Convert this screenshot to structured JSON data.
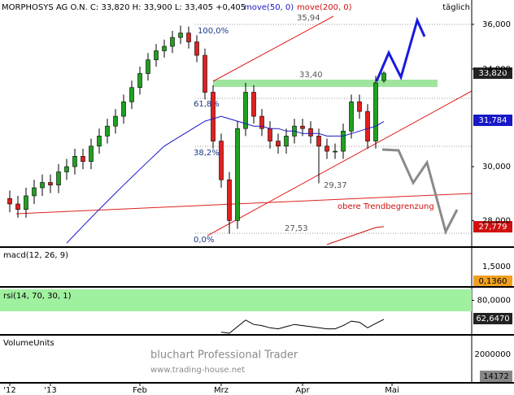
{
  "header": {
    "title": "MORPHOSYS AG O.N. C: 33,820 H: 33,900 L: 33,405 +0,405",
    "period": "täglich"
  },
  "chart_data": {
    "type": "candlestick",
    "categories": [
      "'12",
      null,
      null,
      null,
      null,
      "'13",
      null,
      null,
      null,
      null,
      null,
      null,
      null,
      null,
      null,
      null,
      "Feb",
      null,
      null,
      null,
      null,
      null,
      null,
      null,
      null,
      null,
      "Mrz",
      null,
      null,
      null,
      null,
      null,
      null,
      null,
      null,
      null,
      "Apr",
      null,
      null,
      null,
      null,
      null,
      null,
      null,
      null,
      null,
      null,
      "Mai"
    ],
    "open": [
      28.8,
      28.6,
      28.4,
      28.9,
      29.2,
      29.4,
      29.3,
      29.8,
      30.0,
      30.4,
      30.2,
      30.8,
      31.2,
      31.6,
      32.0,
      32.6,
      33.2,
      33.8,
      34.4,
      34.8,
      35.0,
      35.4,
      35.6,
      35.2,
      34.6,
      33.0,
      31.0,
      29.5,
      28.0,
      31.5,
      33.0,
      32.0,
      31.5,
      31.0,
      30.8,
      31.2,
      31.6,
      31.5,
      31.2,
      30.8,
      30.6,
      30.6,
      31.4,
      32.6,
      32.2,
      31.0,
      33.5,
      null
    ],
    "high": [
      29.1,
      28.9,
      29.2,
      29.5,
      29.7,
      29.7,
      30.1,
      30.3,
      30.7,
      30.7,
      31.1,
      31.5,
      31.9,
      32.3,
      32.9,
      33.5,
      34.1,
      34.7,
      35.1,
      35.3,
      35.7,
      35.94,
      35.9,
      35.5,
      34.9,
      33.3,
      31.3,
      29.8,
      31.8,
      33.4,
      33.3,
      32.3,
      31.8,
      31.3,
      31.5,
      31.9,
      31.9,
      31.8,
      31.5,
      31.1,
      30.9,
      31.7,
      32.9,
      32.9,
      32.5,
      33.7,
      33.9,
      null
    ],
    "low": [
      28.3,
      28.1,
      28.1,
      28.6,
      28.9,
      29.0,
      29.0,
      29.5,
      29.7,
      29.9,
      29.9,
      30.5,
      30.9,
      31.3,
      31.7,
      32.3,
      32.9,
      33.5,
      34.1,
      34.5,
      34.7,
      35.1,
      34.9,
      34.3,
      32.7,
      30.7,
      29.2,
      27.53,
      27.7,
      31.2,
      31.7,
      31.2,
      30.7,
      30.5,
      30.5,
      30.9,
      31.2,
      30.9,
      29.37,
      30.3,
      30.3,
      30.3,
      31.1,
      31.9,
      30.7,
      30.7,
      33.405,
      null
    ],
    "close": [
      28.6,
      28.4,
      28.9,
      29.2,
      29.4,
      29.3,
      29.8,
      30.0,
      30.4,
      30.2,
      30.8,
      31.2,
      31.6,
      32.0,
      32.6,
      33.2,
      33.8,
      34.4,
      34.8,
      35.0,
      35.4,
      35.6,
      35.2,
      34.6,
      33.0,
      31.0,
      29.5,
      28.0,
      31.5,
      33.0,
      32.0,
      31.5,
      31.0,
      30.8,
      31.2,
      31.6,
      31.5,
      31.2,
      30.8,
      30.6,
      30.6,
      31.4,
      32.6,
      32.2,
      31.0,
      33.4,
      33.82,
      null
    ],
    "series": [
      {
        "name": "move(50, 0)",
        "color": "#1818c8",
        "values": [
          null,
          null,
          null,
          null,
          null,
          null,
          null,
          27.2,
          27.5,
          27.8,
          28.1,
          28.4,
          28.7,
          29.0,
          29.3,
          29.6,
          29.9,
          30.2,
          30.5,
          30.8,
          31.0,
          31.2,
          31.4,
          31.6,
          31.8,
          31.9,
          32.0,
          31.9,
          31.8,
          31.7,
          31.6,
          31.6,
          31.5,
          31.5,
          31.4,
          31.4,
          31.3,
          31.3,
          31.3,
          31.2,
          31.2,
          31.2,
          31.3,
          31.4,
          31.5,
          31.6,
          31.784,
          null
        ]
      },
      {
        "name": "move(200, 0)",
        "color": "#d01010",
        "values": [
          null,
          null,
          null,
          null,
          null,
          null,
          null,
          null,
          null,
          null,
          null,
          null,
          null,
          null,
          null,
          null,
          null,
          null,
          null,
          null,
          null,
          null,
          null,
          null,
          null,
          null,
          null,
          null,
          null,
          null,
          null,
          null,
          null,
          null,
          null,
          null,
          null,
          null,
          null,
          27.15,
          27.25,
          27.35,
          27.45,
          27.55,
          27.65,
          27.75,
          27.779,
          null
        ]
      }
    ],
    "log_scale": true,
    "ylim": [
      27.12,
      37.14
    ],
    "yticks": [
      {
        "value": 36,
        "label": "36,000"
      },
      {
        "value": 34,
        "label": "34,000"
      },
      {
        "value": 30,
        "label": "30,000"
      },
      {
        "value": 28,
        "label": "28,000"
      }
    ],
    "last_labels": [
      "33,820",
      "31,784",
      "27,779"
    ],
    "fib_labels": [
      "100,0%",
      "61,8%",
      "38,2%",
      "0,0%"
    ],
    "level_labels": [
      "35,94",
      "33,40",
      "29,37",
      "27,53"
    ],
    "annotation": "obere Trendbegrenzung",
    "macd": {
      "label": "macd(12, 26, 9)",
      "ytick": "1,5000",
      "last": "0,1360"
    },
    "rsi": {
      "label": "rsi(14, 70, 30, 1)",
      "ylim": [
        50,
        90
      ],
      "yticks": [
        {
          "value": 80,
          "label": "80,0000"
        }
      ],
      "band": [
        70,
        90
      ],
      "color": "#000000",
      "values": [
        null,
        null,
        null,
        null,
        null,
        null,
        null,
        null,
        null,
        null,
        null,
        null,
        null,
        null,
        null,
        null,
        null,
        null,
        null,
        null,
        null,
        null,
        null,
        null,
        null,
        null,
        51,
        50,
        56,
        62,
        58,
        57,
        55,
        54,
        56,
        58,
        57,
        56,
        55,
        54,
        54,
        57,
        61,
        60,
        55,
        59,
        62.647,
        null
      ],
      "last": "62,6470"
    },
    "volume": {
      "label": "VolumeUnits",
      "ytick": "2000000",
      "last": "14172"
    },
    "watermark": [
      "bluchart Professional Trader",
      "www.trading-house.net"
    ]
  }
}
